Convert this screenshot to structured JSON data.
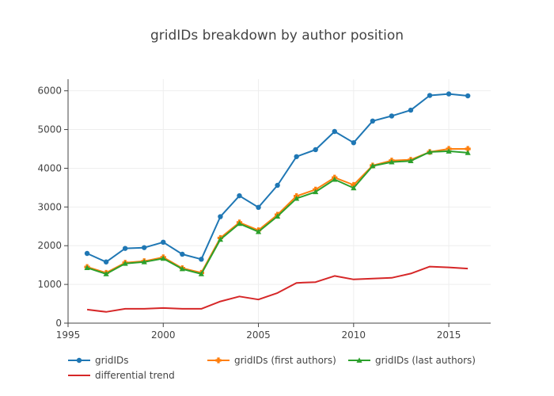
{
  "chart_data": {
    "type": "line",
    "title": "gridIDs breakdown by author position",
    "xlabel": "",
    "ylabel": "",
    "xlim": [
      1995,
      2017.2
    ],
    "ylim": [
      0,
      6300
    ],
    "xticks": [
      1995,
      2000,
      2005,
      2010,
      2015
    ],
    "yticks": [
      0,
      1000,
      2000,
      3000,
      4000,
      5000,
      6000
    ],
    "grid": true,
    "legend_position": "bottom",
    "x": [
      1996,
      1997,
      1998,
      1999,
      2000,
      2001,
      2002,
      2003,
      2004,
      2005,
      2006,
      2007,
      2008,
      2009,
      2010,
      2011,
      2012,
      2013,
      2014,
      2015,
      2016
    ],
    "series": [
      {
        "name": "gridIDs",
        "color": "#1f77b4",
        "marker": "circle",
        "values": [
          1800,
          1580,
          1930,
          1950,
          2090,
          1780,
          1650,
          2750,
          3290,
          2990,
          3560,
          4300,
          4480,
          4950,
          4660,
          5220,
          5350,
          5500,
          5880,
          5920,
          5870
        ]
      },
      {
        "name": "gridIDs (first authors)",
        "color": "#ff7f0e",
        "marker": "cross",
        "values": [
          1450,
          1300,
          1560,
          1600,
          1700,
          1420,
          1300,
          2200,
          2600,
          2400,
          2800,
          3280,
          3450,
          3760,
          3570,
          4070,
          4200,
          4220,
          4420,
          4500,
          4500
        ]
      },
      {
        "name": "gridIDs (last authors)",
        "color": "#2ca02c",
        "marker": "triangle-up",
        "values": [
          1430,
          1270,
          1540,
          1580,
          1670,
          1400,
          1270,
          2160,
          2570,
          2360,
          2760,
          3220,
          3390,
          3710,
          3490,
          4060,
          4160,
          4190,
          4420,
          4440,
          4400
        ]
      },
      {
        "name": "differential trend",
        "color": "#d62728",
        "marker": "none",
        "values": [
          350,
          290,
          370,
          370,
          390,
          370,
          370,
          560,
          690,
          610,
          780,
          1040,
          1060,
          1220,
          1130,
          1150,
          1170,
          1280,
          1460,
          1440,
          1410
        ]
      }
    ]
  }
}
